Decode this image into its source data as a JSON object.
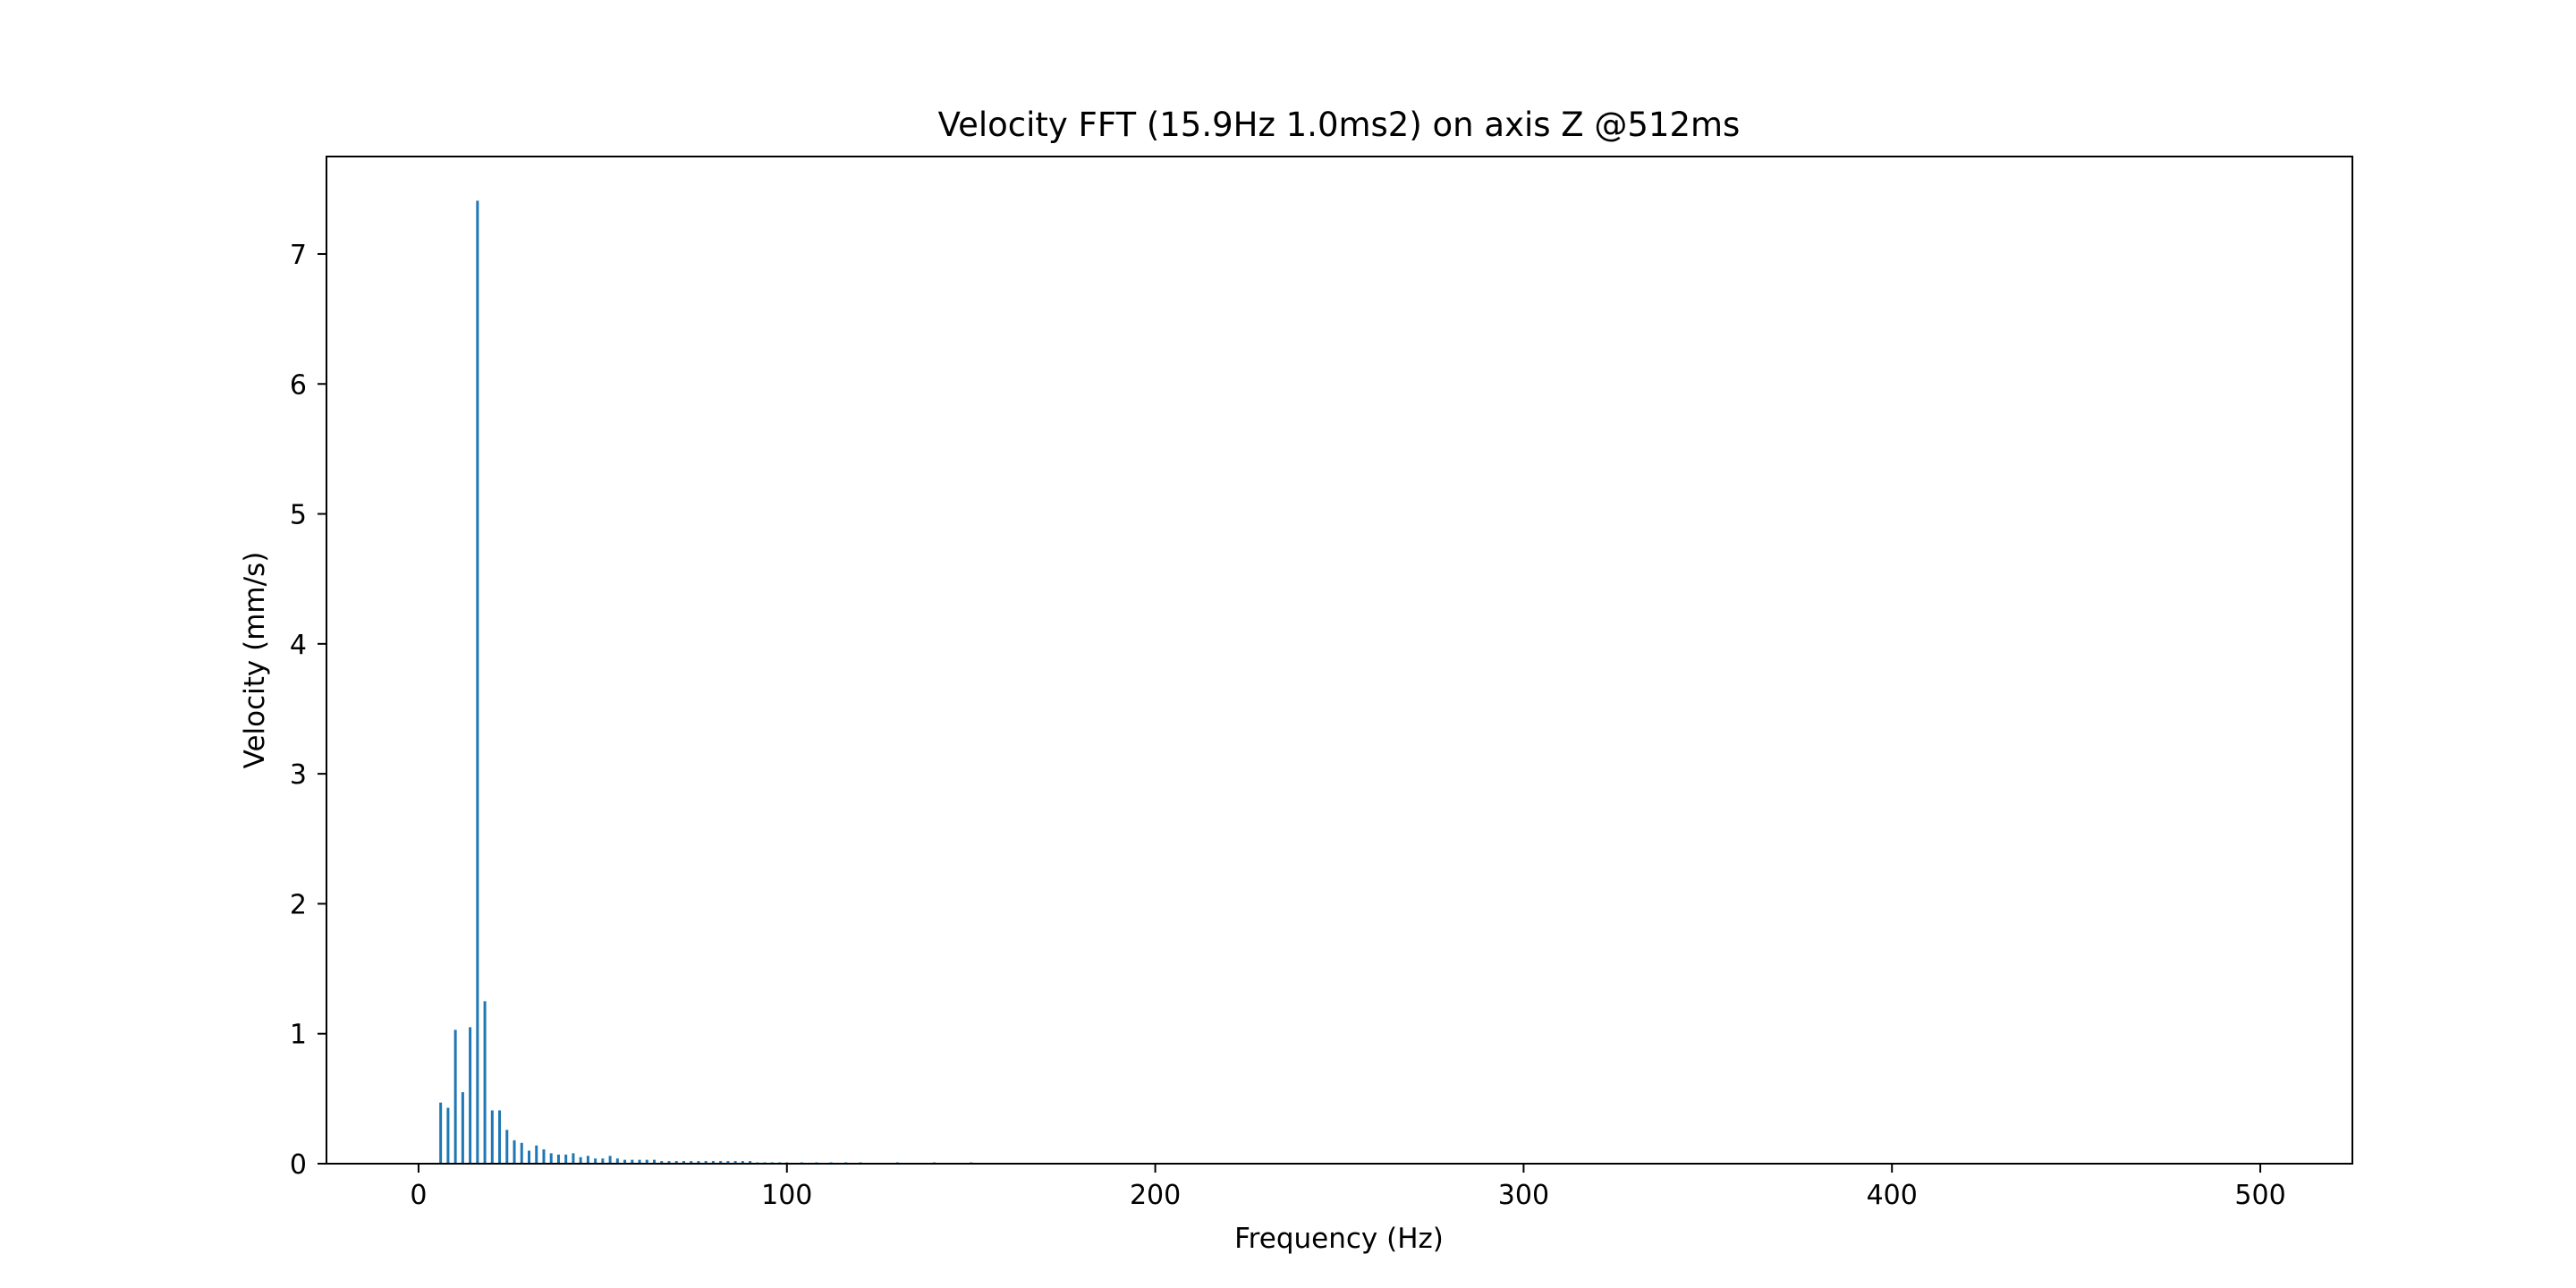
{
  "chart_data": {
    "type": "bar",
    "title": "Velocity FFT (15.9Hz 1.0ms2) on axis Z @512ms",
    "xlabel": "Frequency (Hz)",
    "ylabel": "Velocity (mm/s)",
    "xlim": [
      -25,
      525
    ],
    "ylim": [
      0,
      7.75
    ],
    "xticks": [
      0,
      100,
      200,
      300,
      400,
      500
    ],
    "yticks": [
      0,
      1,
      2,
      3,
      4,
      5,
      6,
      7
    ],
    "bar_color": "#1f77b4",
    "grid": false,
    "legend": "none",
    "x": [
      6,
      8,
      10,
      12,
      14,
      16,
      18,
      20,
      22,
      24,
      26,
      28,
      30,
      32,
      34,
      36,
      38,
      40,
      42,
      44,
      46,
      48,
      50,
      52,
      54,
      56,
      58,
      60,
      62,
      64,
      66,
      68,
      70,
      72,
      74,
      76,
      78,
      80,
      82,
      84,
      86,
      88,
      90,
      92,
      94,
      96,
      98,
      100,
      104,
      108,
      112,
      116,
      120,
      130,
      140,
      150
    ],
    "values": [
      0.47,
      0.43,
      1.03,
      0.55,
      1.05,
      7.41,
      1.25,
      0.41,
      0.41,
      0.26,
      0.18,
      0.16,
      0.1,
      0.14,
      0.11,
      0.08,
      0.07,
      0.07,
      0.08,
      0.05,
      0.06,
      0.04,
      0.04,
      0.06,
      0.04,
      0.03,
      0.03,
      0.03,
      0.03,
      0.03,
      0.02,
      0.02,
      0.02,
      0.02,
      0.02,
      0.02,
      0.02,
      0.02,
      0.02,
      0.02,
      0.02,
      0.02,
      0.02,
      0.01,
      0.01,
      0.01,
      0.01,
      0.01,
      0.01,
      0.01,
      0.01,
      0.01,
      0.01,
      0.01,
      0.01,
      0.01
    ]
  }
}
